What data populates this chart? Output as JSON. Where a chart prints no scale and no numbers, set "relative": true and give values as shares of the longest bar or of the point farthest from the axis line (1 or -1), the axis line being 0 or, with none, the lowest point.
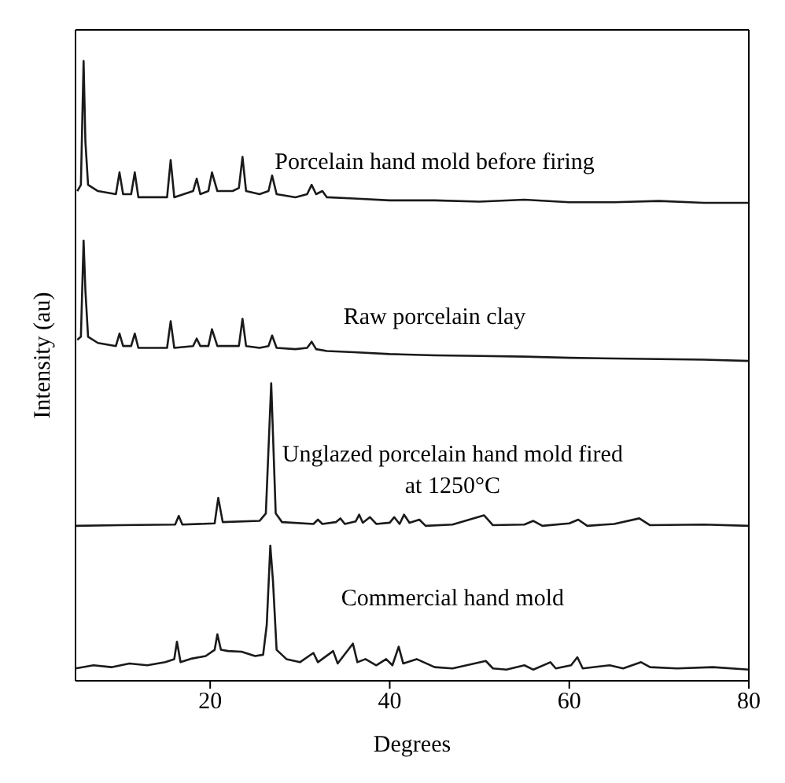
{
  "chart_data": {
    "type": "line",
    "xlabel": "Degrees",
    "ylabel": "Intensity (au)",
    "relative": true,
    "xlim": [
      5,
      80
    ],
    "xticks": [
      20,
      40,
      60,
      80
    ],
    "marker": "none",
    "line_style": "solid",
    "series": [
      {
        "name": "Porcelain hand mold before firing",
        "color": "#1a1a1a",
        "x": [
          5.2,
          5.6,
          5.9,
          6.1,
          6.4,
          7.5,
          9.5,
          9.9,
          10.3,
          11.2,
          11.6,
          12.0,
          15.2,
          15.6,
          16.0,
          18.1,
          18.5,
          18.9,
          19.8,
          20.2,
          20.8,
          22.5,
          23.2,
          23.6,
          24.0,
          25.5,
          26.5,
          26.9,
          27.4,
          29.5,
          30.8,
          31.3,
          31.8,
          32.5,
          33,
          36,
          40,
          45,
          50,
          55,
          60,
          65,
          70,
          75,
          80
        ],
        "values": [
          0.79,
          0.8,
          1.0,
          0.87,
          0.8,
          0.79,
          0.785,
          0.82,
          0.785,
          0.785,
          0.82,
          0.78,
          0.78,
          0.84,
          0.78,
          0.79,
          0.81,
          0.785,
          0.79,
          0.82,
          0.79,
          0.79,
          0.795,
          0.845,
          0.79,
          0.785,
          0.79,
          0.815,
          0.785,
          0.78,
          0.785,
          0.8,
          0.785,
          0.79,
          0.78,
          0.778,
          0.775,
          0.775,
          0.773,
          0.776,
          0.772,
          0.772,
          0.774,
          0.771,
          0.771
        ]
      },
      {
        "name": "Raw porcelain clay",
        "color": "#1a1a1a",
        "x": [
          5.2,
          5.6,
          5.9,
          6.1,
          6.4,
          7.5,
          9.5,
          9.9,
          10.3,
          11.2,
          11.6,
          12,
          15.2,
          15.6,
          16,
          18.1,
          18.5,
          18.9,
          19.8,
          20.2,
          20.8,
          22.5,
          23.2,
          23.6,
          24,
          25.5,
          26.5,
          26.9,
          27.4,
          29.5,
          30.8,
          31.3,
          31.8,
          33,
          36,
          40,
          45,
          50,
          55,
          60,
          65,
          70,
          75,
          80
        ],
        "values": [
          0.55,
          0.555,
          0.71,
          0.63,
          0.555,
          0.545,
          0.54,
          0.56,
          0.54,
          0.54,
          0.56,
          0.537,
          0.537,
          0.58,
          0.537,
          0.54,
          0.552,
          0.54,
          0.54,
          0.567,
          0.54,
          0.54,
          0.54,
          0.584,
          0.54,
          0.537,
          0.54,
          0.557,
          0.537,
          0.535,
          0.537,
          0.547,
          0.535,
          0.532,
          0.53,
          0.527,
          0.525,
          0.524,
          0.523,
          0.521,
          0.52,
          0.519,
          0.518,
          0.516
        ]
      },
      {
        "name": "Unglazed porcelain hand mold fired at 1250°C",
        "color": "#1a1a1a",
        "x": [
          5,
          10,
          16.1,
          16.5,
          16.9,
          20.5,
          20.9,
          21.4,
          25.5,
          26.2,
          26.8,
          27.3,
          28,
          31.5,
          32,
          32.5,
          34,
          34.5,
          35,
          36.2,
          36.6,
          37,
          37.8,
          38.5,
          40,
          40.5,
          41.1,
          41.6,
          42.2,
          43.3,
          44,
          47,
          50.5,
          51.5,
          55,
          56,
          57,
          60,
          61,
          62,
          65,
          67.8,
          69,
          75,
          80
        ],
        "values": [
          0.25,
          0.251,
          0.252,
          0.266,
          0.252,
          0.254,
          0.295,
          0.256,
          0.258,
          0.27,
          0.48,
          0.27,
          0.256,
          0.253,
          0.26,
          0.253,
          0.256,
          0.262,
          0.253,
          0.257,
          0.268,
          0.255,
          0.264,
          0.253,
          0.255,
          0.264,
          0.253,
          0.268,
          0.255,
          0.26,
          0.25,
          0.252,
          0.267,
          0.251,
          0.252,
          0.258,
          0.25,
          0.254,
          0.26,
          0.25,
          0.253,
          0.262,
          0.251,
          0.252,
          0.25
        ]
      },
      {
        "name": "Commercial hand mold",
        "color": "#1a1a1a",
        "x": [
          5,
          7,
          9,
          11,
          13,
          15,
          16,
          16.3,
          16.7,
          18,
          19.5,
          20.5,
          20.8,
          21.2,
          22,
          23.5,
          25,
          25.9,
          26.3,
          26.7,
          27.0,
          27.4,
          28.5,
          30,
          31.5,
          32,
          33.7,
          34.2,
          35.9,
          36.4,
          37.3,
          38.5,
          39.6,
          40.3,
          41,
          41.5,
          43,
          45,
          47,
          50.7,
          51.5,
          53,
          55,
          56,
          57.9,
          58.5,
          60.2,
          60.9,
          61.5,
          64.5,
          66,
          68,
          69,
          72,
          76,
          80
        ],
        "values": [
          0.02,
          0.025,
          0.022,
          0.028,
          0.025,
          0.03,
          0.035,
          0.063,
          0.03,
          0.036,
          0.04,
          0.05,
          0.075,
          0.05,
          0.048,
          0.047,
          0.04,
          0.042,
          0.09,
          0.218,
          0.16,
          0.05,
          0.035,
          0.03,
          0.045,
          0.03,
          0.048,
          0.028,
          0.06,
          0.03,
          0.035,
          0.025,
          0.035,
          0.025,
          0.055,
          0.028,
          0.035,
          0.022,
          0.02,
          0.032,
          0.02,
          0.018,
          0.025,
          0.018,
          0.03,
          0.02,
          0.025,
          0.038,
          0.02,
          0.025,
          0.02,
          0.03,
          0.022,
          0.02,
          0.022,
          0.018
        ]
      }
    ]
  }
}
